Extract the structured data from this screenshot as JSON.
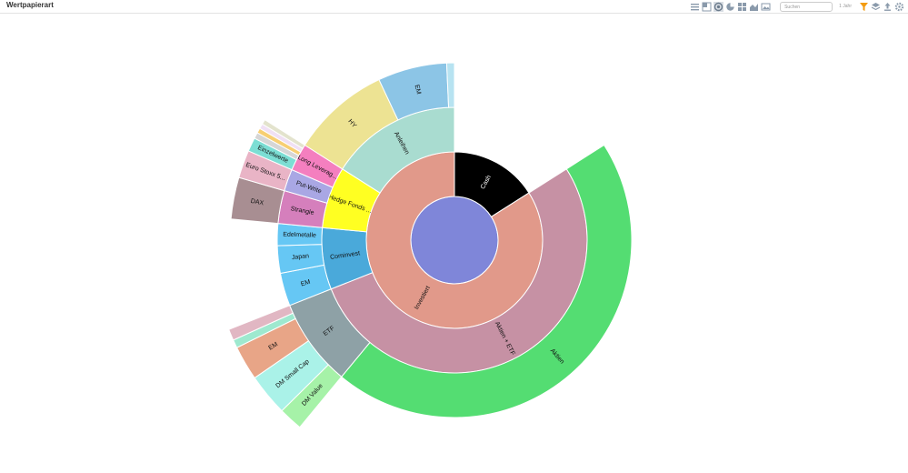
{
  "header": {
    "title": "Wertpapierart",
    "search_placeholder": "Suchen",
    "period": "1 Jahr"
  },
  "toolbar_icons": [
    "list-view-icon",
    "treemap-icon",
    "sunburst-icon",
    "pie-icon",
    "grid-icon",
    "area-chart-icon",
    "image-icon",
    "filter-icon",
    "layers-icon",
    "export-icon",
    "settings-icon"
  ],
  "chart_data": {
    "type": "sunburst",
    "title": "Wertpapierart",
    "nodes": [
      {
        "id": "cash",
        "parent": "",
        "label": "Cash",
        "value": 16,
        "color": "#000000",
        "text_color": "#ffffff"
      },
      {
        "id": "inv",
        "parent": "",
        "label": "Investiert",
        "value": 84,
        "color": "#e1998a"
      },
      {
        "id": "akt_etf",
        "parent": "inv",
        "label": "Aktien + ETF",
        "value": 53,
        "color": "#c691a4"
      },
      {
        "id": "cominvest",
        "parent": "inv",
        "label": "Cominvest",
        "value": 7.5,
        "color": "#4aa9da"
      },
      {
        "id": "hedge",
        "parent": "inv",
        "label": "Hedge Fonds ...",
        "value": 7.5,
        "color": "#ffff22"
      },
      {
        "id": "anleihen",
        "parent": "inv",
        "label": "Anleihen",
        "value": 16,
        "color": "#a9dcd0"
      },
      {
        "id": "aktien",
        "parent": "akt_etf",
        "label": "Aktien",
        "value": 45,
        "color": "#54dd72"
      },
      {
        "id": "etf",
        "parent": "akt_etf",
        "label": "ETF",
        "value": 8,
        "color": "#8ea1a6"
      },
      {
        "id": "c_em",
        "parent": "cominvest",
        "label": "EM",
        "value": 3,
        "color": "#66c7f4"
      },
      {
        "id": "c_japan",
        "parent": "cominvest",
        "label": "Japan",
        "value": 2.5,
        "color": "#66c7f4"
      },
      {
        "id": "c_edel",
        "parent": "cominvest",
        "label": "Edelmetalle",
        "value": 2,
        "color": "#66c7f4"
      },
      {
        "id": "strangle",
        "parent": "hedge",
        "label": "Strangle",
        "value": 3,
        "color": "#d57fbc"
      },
      {
        "id": "putwrite",
        "parent": "hedge",
        "label": "Put-Write",
        "value": 2,
        "color": "#a9a7e4"
      },
      {
        "id": "longlev",
        "parent": "hedge",
        "label": "Long Leverag...",
        "value": 2.5,
        "color": "#f47fbf"
      },
      {
        "id": "hy",
        "parent": "anleihen",
        "label": "HY",
        "value": 9,
        "color": "#ede393"
      },
      {
        "id": "a_em",
        "parent": "anleihen",
        "label": "EM",
        "value": 6.3,
        "color": "#8cc5e6"
      },
      {
        "id": "a_small",
        "parent": "anleihen",
        "label": "",
        "value": 0.7,
        "color": "#b7e3f1"
      },
      {
        "id": "dm_value",
        "parent": "etf",
        "label": "DM Value",
        "value": 1.6,
        "color": "#a6f2a8"
      },
      {
        "id": "dm_small",
        "parent": "etf",
        "label": "DM Small Cap",
        "value": 2.8,
        "color": "#aaf2e8"
      },
      {
        "id": "etf_em",
        "parent": "etf",
        "label": "EM",
        "value": 2.3,
        "color": "#e8a587"
      },
      {
        "id": "etf_s1",
        "parent": "etf",
        "label": "",
        "value": 0.55,
        "color": "#9ee9cf"
      },
      {
        "id": "etf_s2",
        "parent": "etf",
        "label": "",
        "value": 0.75,
        "color": "#e1b7c3"
      },
      {
        "id": "dax",
        "parent": "strangle",
        "label": "DAX",
        "value": 3,
        "color": "#a88e92"
      },
      {
        "id": "euro",
        "parent": "putwrite",
        "label": "Euro Stoxx 5...",
        "value": 2,
        "color": "#e9b4c6"
      },
      {
        "id": "einzel",
        "parent": "longlev",
        "label": "Einzelwerte",
        "value": 2.5,
        "color": "#7cded4"
      },
      {
        "id": "ll_s1",
        "parent": "longlev",
        "label": "",
        "value": 1.1,
        "color": "#d6d6d6"
      },
      {
        "id": "ll_s2",
        "parent": "longlev",
        "label": "",
        "value": 0.9,
        "color": "#f7cf73"
      },
      {
        "id": "ll_s3",
        "parent": "longlev",
        "label": "",
        "value": 0.9,
        "color": "#f0e0f4"
      },
      {
        "id": "ll_s4",
        "parent": "longlev",
        "label": "",
        "value": 0.9,
        "color": "#e3e3cd"
      }
    ]
  }
}
